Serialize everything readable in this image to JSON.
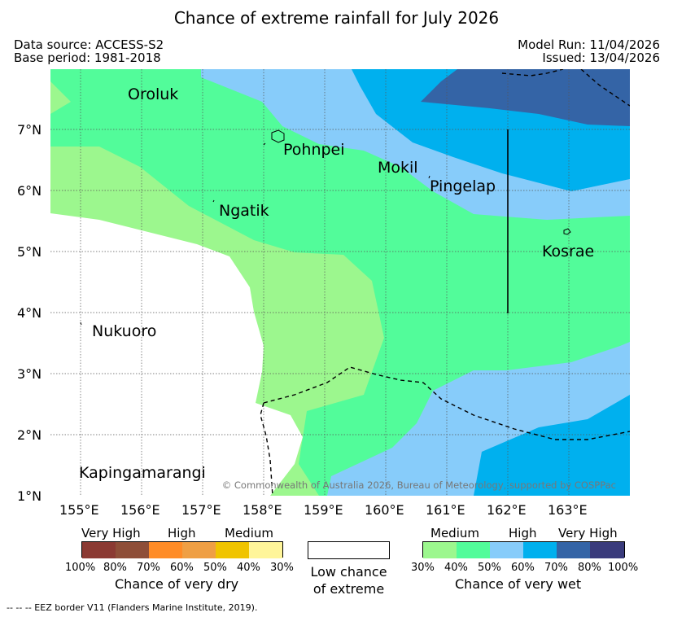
{
  "title": "Chance of extreme rainfall for July 2026",
  "meta": {
    "data_source": "Data source: ACCESS-S2",
    "base_period": "Base period: 1981-2018",
    "model_run": "Model Run: 11/04/2026",
    "issued": "Issued: 13/04/2026"
  },
  "map": {
    "places": [
      "Oroluk",
      "Pohnpei",
      "Mokil",
      "Pingelap",
      "Ngatik",
      "Kosrae",
      "Nukuoro",
      "Kapingamarangi"
    ],
    "lon_labels": [
      "155°E",
      "156°E",
      "157°E",
      "158°E",
      "159°E",
      "160°E",
      "161°E",
      "162°E",
      "163°E"
    ],
    "lat_labels": [
      "7°N",
      "6°N",
      "5°N",
      "4°N",
      "3°N",
      "2°N",
      "1°N"
    ],
    "copyright": "© Commonwealth of Australia 2026, Bureau of Meteorology, supported by COSPPac"
  },
  "legend_dry": {
    "categories": [
      "Very High",
      "High",
      "Medium"
    ],
    "ticks": [
      "100%",
      "80%",
      "70%",
      "60%",
      "50%",
      "40%",
      "30%"
    ],
    "label": "Chance of very dry",
    "colors": [
      "#8b3a33",
      "#8e4e38",
      "#ff8c27",
      "#ef9f44",
      "#f0c400",
      "#fff59a"
    ]
  },
  "legend_low": {
    "line1": "Low chance",
    "line2": "of extreme"
  },
  "legend_wet": {
    "categories": [
      "Medium",
      "High",
      "Very High"
    ],
    "ticks": [
      "30%",
      "40%",
      "50%",
      "60%",
      "70%",
      "80%",
      "100%"
    ],
    "label": "Chance of very wet",
    "colors": [
      "#9cf78e",
      "#52fc9a",
      "#87ccfa",
      "#00b0ee",
      "#3464a6",
      "#3a3b7c"
    ]
  },
  "eez_note": "--  --  -- EEZ border V11 (Flanders Marine Institute, 2019)."
}
